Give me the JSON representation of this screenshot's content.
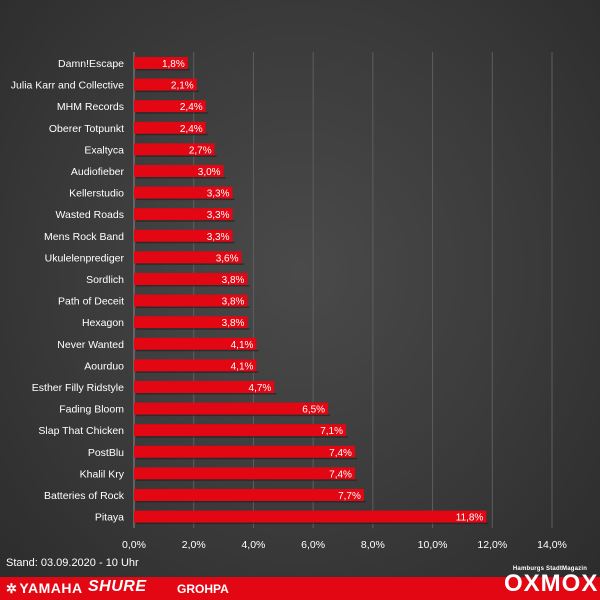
{
  "chart_data": {
    "type": "bar",
    "orientation": "horizontal",
    "categories": [
      "Damn!Escape",
      "Julia Karr and Collective",
      "MHM Records",
      "Oberer Totpunkt",
      "Exaltyca",
      "Audiofieber",
      "Kellerstudio",
      "Wasted Roads",
      "Mens Rock Band",
      "Ukulelenprediger",
      "Sordlich",
      "Path of Deceit",
      "Hexagon",
      "Never Wanted",
      "Aourduo",
      "Esther Filly Ridstyle",
      "Fading Bloom",
      "Slap That Chicken",
      "PostBlu",
      "Khalil Kry",
      "Batteries of Rock",
      "Pitaya"
    ],
    "values": [
      1.8,
      2.1,
      2.4,
      2.4,
      2.7,
      3.0,
      3.3,
      3.3,
      3.3,
      3.6,
      3.8,
      3.8,
      3.8,
      4.1,
      4.1,
      4.7,
      6.5,
      7.1,
      7.4,
      7.4,
      7.7,
      11.8
    ],
    "value_labels": [
      "1,8%",
      "2,1%",
      "2,4%",
      "2,4%",
      "2,7%",
      "3,0%",
      "3,3%",
      "3,3%",
      "3,3%",
      "3,6%",
      "3,8%",
      "3,8%",
      "3,8%",
      "4,1%",
      "4,1%",
      "4,7%",
      "6,5%",
      "7,1%",
      "7,4%",
      "7,4%",
      "7,7%",
      "11,8%"
    ],
    "x_ticks": [
      "0,0%",
      "2,0%",
      "4,0%",
      "6,0%",
      "8,0%",
      "10,0%",
      "12,0%",
      "14,0%"
    ],
    "xlim": [
      0,
      14
    ],
    "grid": true,
    "bar_color": "#e30613"
  },
  "footer": {
    "stand": "Stand: 03.09.2020 - 10 Uhr"
  },
  "sponsors": {
    "yamaha": "YAMAHA",
    "shure": "SHURE",
    "grohpa": "GROHPA"
  },
  "brand": {
    "subtitle": "Hamburgs StadtMagazin",
    "name": "OXMOX"
  },
  "colors": {
    "bar_bottom_band": "#e30613",
    "background": "#3a3a3a"
  }
}
